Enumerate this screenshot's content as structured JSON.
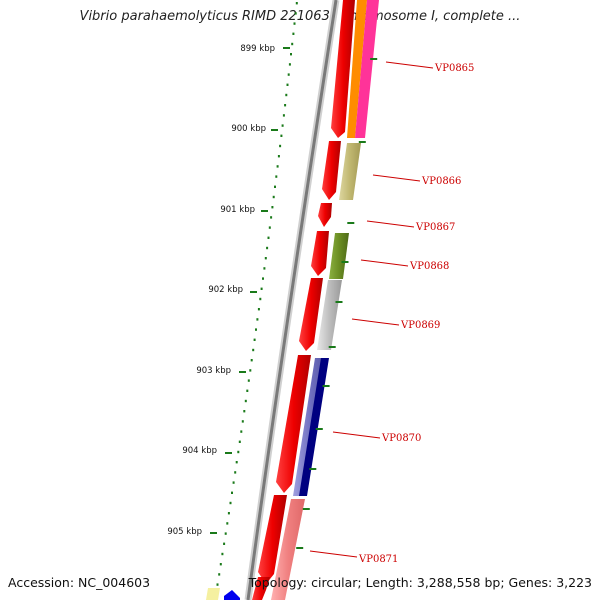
{
  "title": "Vibrio parahaemolyticus RIMD 2210633 chromosome I, complete ...",
  "footer": {
    "accession": "Accession: NC_004603",
    "topology": "Topology: circular; Length: 3,288,558 bp; Genes: 3,223"
  },
  "ruler": {
    "ticks": [
      "899 kbp",
      "900 kbp",
      "901 kbp",
      "902 kbp",
      "903 kbp",
      "904 kbp",
      "905 kbp"
    ]
  },
  "genes": [
    {
      "label": "VP0865"
    },
    {
      "label": "VP0866"
    },
    {
      "label": "VP0867"
    },
    {
      "label": "VP0868"
    },
    {
      "label": "VP0869"
    },
    {
      "label": "VP0870"
    },
    {
      "label": "VP0871"
    }
  ],
  "colors": {
    "strand_red": "#ee0000",
    "backbone": "#888888",
    "tick_green": "#1a7a1a",
    "label_red": "#cc0000",
    "cog_orange": "#ff8c00",
    "cog_pink": "#ff3399",
    "cog_khaki": "#c8c07a",
    "cog_olive": "#6b8e23",
    "cog_gray": "#b8b8b8",
    "cog_navy": "#000080",
    "cog_slate": "#7070c0",
    "cog_salmon": "#f08080",
    "cog_yellow": "#f5f0a0",
    "cog_blue": "#0000ee"
  }
}
